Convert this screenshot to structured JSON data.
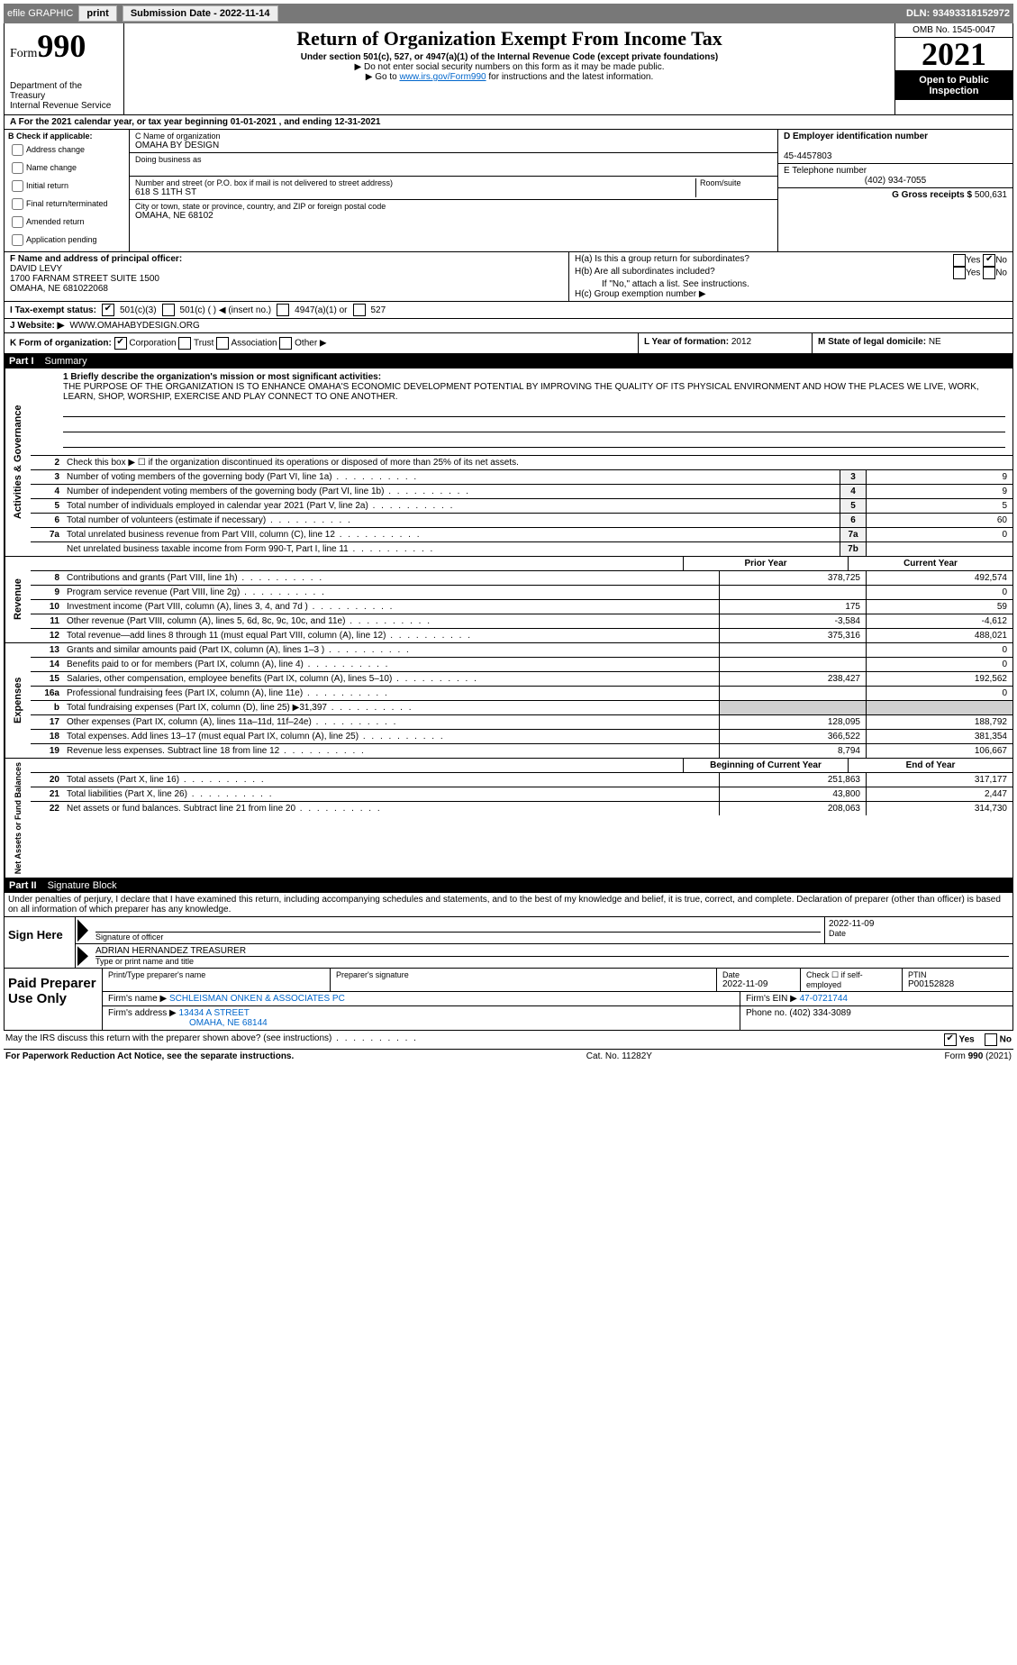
{
  "topbar": {
    "efile": "efile GRAPHIC",
    "print": "print",
    "subdate_label": "Submission Date - 2022-11-14",
    "dln": "DLN: 93493318152972"
  },
  "header": {
    "form_word": "Form",
    "form_num": "990",
    "dept": "Department of the Treasury",
    "irs": "Internal Revenue Service",
    "title": "Return of Organization Exempt From Income Tax",
    "subtitle": "Under section 501(c), 527, or 4947(a)(1) of the Internal Revenue Code (except private foundations)",
    "note1": "▶ Do not enter social security numbers on this form as it may be made public.",
    "note2_pre": "▶ Go to ",
    "note2_link": "www.irs.gov/Form990",
    "note2_post": " for instructions and the latest information.",
    "omb": "OMB No. 1545-0047",
    "year": "2021",
    "open": "Open to Public Inspection"
  },
  "rowA": "A For the 2021 calendar year, or tax year beginning 01-01-2021     , and ending 12-31-2021",
  "colB": {
    "title": "B Check if applicable:",
    "items": [
      "Address change",
      "Name change",
      "Initial return",
      "Final return/terminated",
      "Amended return",
      "Application pending"
    ]
  },
  "colC": {
    "name_lbl": "C Name of organization",
    "name": "OMAHA BY DESIGN",
    "dba_lbl": "Doing business as",
    "addr_lbl": "Number and street (or P.O. box if mail is not delivered to street address)",
    "room_lbl": "Room/suite",
    "addr": "618 S 11TH ST",
    "city_lbl": "City or town, state or province, country, and ZIP or foreign postal code",
    "city": "OMAHA, NE  68102"
  },
  "colDE": {
    "d_lbl": "D Employer identification number",
    "d_val": "45-4457803",
    "e_lbl": "E Telephone number",
    "e_val": "(402) 934-7055",
    "g_lbl": "G Gross receipts $",
    "g_val": "500,631"
  },
  "fh": {
    "f_lbl": "F Name and address of principal officer:",
    "f_name": "DAVID LEVY",
    "f_addr1": "1700 FARNAM STREET SUITE 1500",
    "f_addr2": "OMAHA, NE  681022068",
    "ha": "H(a)  Is this a group return for subordinates?",
    "hb": "H(b)  Are all subordinates included?",
    "hb_note": "If \"No,\" attach a list. See instructions.",
    "hc": "H(c)  Group exemption number ▶"
  },
  "status": {
    "i_lbl": "I   Tax-exempt status:",
    "s1": "501(c)(3)",
    "s2": "501(c) (   ) ◀ (insert no.)",
    "s3": "4947(a)(1) or",
    "s4": "527"
  },
  "website": {
    "j_lbl": "J   Website: ▶",
    "j_val": "WWW.OMAHABYDESIGN.ORG"
  },
  "korg": {
    "k_lbl": "K Form of organization:",
    "k1": "Corporation",
    "k2": "Trust",
    "k3": "Association",
    "k4": "Other ▶",
    "l_lbl": "L Year of formation:",
    "l_val": "2012",
    "m_lbl": "M State of legal domicile:",
    "m_val": "NE"
  },
  "part1": {
    "header": "Part I",
    "title": "Summary",
    "q1_lbl": "1  Briefly describe the organization's mission or most significant activities:",
    "q1_val": "THE PURPOSE OF THE ORGANIZATION IS TO ENHANCE OMAHA'S ECONOMIC DEVELOPMENT POTENTIAL BY IMPROVING THE QUALITY OF ITS PHYSICAL ENVIRONMENT AND HOW THE PLACES WE LIVE, WORK, LEARN, SHOP, WORSHIP, EXERCISE AND PLAY CONNECT TO ONE ANOTHER.",
    "q2": "Check this box ▶ ☐  if the organization discontinued its operations or disposed of more than 25% of its net assets.",
    "rows_ag": [
      {
        "n": "3",
        "lbl": "Number of voting members of the governing body (Part VI, line 1a)",
        "box": "3",
        "v": "9"
      },
      {
        "n": "4",
        "lbl": "Number of independent voting members of the governing body (Part VI, line 1b)",
        "box": "4",
        "v": "9"
      },
      {
        "n": "5",
        "lbl": "Total number of individuals employed in calendar year 2021 (Part V, line 2a)",
        "box": "5",
        "v": "5"
      },
      {
        "n": "6",
        "lbl": "Total number of volunteers (estimate if necessary)",
        "box": "6",
        "v": "60"
      },
      {
        "n": "7a",
        "lbl": "Total unrelated business revenue from Part VIII, column (C), line 12",
        "box": "7a",
        "v": "0"
      },
      {
        "n": "",
        "lbl": "Net unrelated business taxable income from Form 990-T, Part I, line 11",
        "box": "7b",
        "v": ""
      }
    ],
    "prior": "Prior Year",
    "current": "Current Year",
    "rows_rev": [
      {
        "n": "8",
        "lbl": "Contributions and grants (Part VIII, line 1h)",
        "p": "378,725",
        "c": "492,574"
      },
      {
        "n": "9",
        "lbl": "Program service revenue (Part VIII, line 2g)",
        "p": "",
        "c": "0"
      },
      {
        "n": "10",
        "lbl": "Investment income (Part VIII, column (A), lines 3, 4, and 7d )",
        "p": "175",
        "c": "59"
      },
      {
        "n": "11",
        "lbl": "Other revenue (Part VIII, column (A), lines 5, 6d, 8c, 9c, 10c, and 11e)",
        "p": "-3,584",
        "c": "-4,612"
      },
      {
        "n": "12",
        "lbl": "Total revenue—add lines 8 through 11 (must equal Part VIII, column (A), line 12)",
        "p": "375,316",
        "c": "488,021"
      }
    ],
    "rows_exp": [
      {
        "n": "13",
        "lbl": "Grants and similar amounts paid (Part IX, column (A), lines 1–3 )",
        "p": "",
        "c": "0"
      },
      {
        "n": "14",
        "lbl": "Benefits paid to or for members (Part IX, column (A), line 4)",
        "p": "",
        "c": "0"
      },
      {
        "n": "15",
        "lbl": "Salaries, other compensation, employee benefits (Part IX, column (A), lines 5–10)",
        "p": "238,427",
        "c": "192,562"
      },
      {
        "n": "16a",
        "lbl": "Professional fundraising fees (Part IX, column (A), line 11e)",
        "p": "",
        "c": "0"
      },
      {
        "n": "b",
        "lbl": "Total fundraising expenses (Part IX, column (D), line 25) ▶31,397",
        "p": "GRAY",
        "c": "GRAY"
      },
      {
        "n": "17",
        "lbl": "Other expenses (Part IX, column (A), lines 11a–11d, 11f–24e)",
        "p": "128,095",
        "c": "188,792"
      },
      {
        "n": "18",
        "lbl": "Total expenses. Add lines 13–17 (must equal Part IX, column (A), line 25)",
        "p": "366,522",
        "c": "381,354"
      },
      {
        "n": "19",
        "lbl": "Revenue less expenses. Subtract line 18 from line 12",
        "p": "8,794",
        "c": "106,667"
      }
    ],
    "beg": "Beginning of Current Year",
    "end": "End of Year",
    "rows_na": [
      {
        "n": "20",
        "lbl": "Total assets (Part X, line 16)",
        "p": "251,863",
        "c": "317,177"
      },
      {
        "n": "21",
        "lbl": "Total liabilities (Part X, line 26)",
        "p": "43,800",
        "c": "2,447"
      },
      {
        "n": "22",
        "lbl": "Net assets or fund balances. Subtract line 21 from line 20",
        "p": "208,063",
        "c": "314,730"
      }
    ],
    "vtab_ag": "Activities & Governance",
    "vtab_rev": "Revenue",
    "vtab_exp": "Expenses",
    "vtab_na": "Net Assets or Fund Balances"
  },
  "part2": {
    "header": "Part II",
    "title": "Signature Block",
    "decl": "Under penalties of perjury, I declare that I have examined this return, including accompanying schedules and statements, and to the best of my knowledge and belief, it is true, correct, and complete. Declaration of preparer (other than officer) is based on all information of which preparer has any knowledge.",
    "sign_here": "Sign Here",
    "sig_officer": "Signature of officer",
    "sig_date": "Date",
    "sig_date_val": "2022-11-09",
    "name_title": "ADRIAN HERNANDEZ TREASURER",
    "name_title_lbl": "Type or print name and title",
    "paid": "Paid Preparer Use Only",
    "pp_name_lbl": "Print/Type preparer's name",
    "pp_sig_lbl": "Preparer's signature",
    "pp_date_lbl": "Date",
    "pp_date": "2022-11-09",
    "pp_check_lbl": "Check ☐ if self-employed",
    "ptin_lbl": "PTIN",
    "ptin": "P00152828",
    "firm_name_lbl": "Firm's name    ▶",
    "firm_name": "SCHLEISMAN ONKEN & ASSOCIATES PC",
    "firm_ein_lbl": "Firm's EIN ▶",
    "firm_ein": "47-0721744",
    "firm_addr_lbl": "Firm's address ▶",
    "firm_addr1": "13434 A STREET",
    "firm_addr2": "OMAHA, NE  68144",
    "phone_lbl": "Phone no.",
    "phone": "(402) 334-3089",
    "discuss": "May the IRS discuss this return with the preparer shown above? (see instructions)",
    "yes": "Yes",
    "no": "No"
  },
  "footer": {
    "pra": "For Paperwork Reduction Act Notice, see the separate instructions.",
    "cat": "Cat. No. 11282Y",
    "form": "Form 990 (2021)"
  }
}
